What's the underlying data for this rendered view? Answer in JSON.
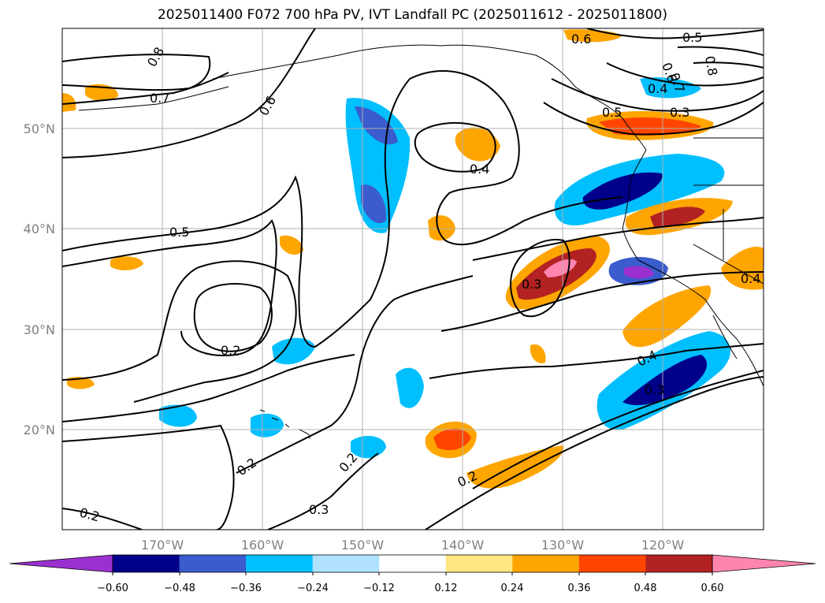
{
  "title": "2025011400 F072 700 hPa PV, IVT Landfall PC (2025011612 - 2025011800)",
  "map": {
    "lon_range": [
      180,
      110
    ],
    "lat_range": [
      10,
      60
    ],
    "lon_ticks": [
      "170°W",
      "160°W",
      "150°W",
      "140°W",
      "130°W",
      "120°W"
    ],
    "lat_ticks": [
      "20°N",
      "30°N",
      "40°N",
      "50°N"
    ],
    "gridlines": true
  },
  "contour_labels": [
    "0.8",
    "0.7",
    "0.6",
    "0.6",
    "0.5",
    "0.5",
    "0.5",
    "0.4",
    "0.4",
    "0.4",
    "0.4",
    "0.3",
    "0.3",
    "0.3",
    "0.3",
    "0.2",
    "0.2",
    "0.2",
    "0.2",
    "0.2",
    "0.6",
    "0.7",
    "0.8"
  ],
  "colorbar": {
    "ticks": [
      "−0.60",
      "−0.48",
      "−0.36",
      "−0.24",
      "−0.12",
      "0.12",
      "0.24",
      "0.36",
      "0.48",
      "0.60"
    ],
    "colors": [
      "#9b30d0",
      "#00008b",
      "#3a5ccc",
      "#00bfff",
      "#b0e2ff",
      "#ffffff",
      "#ffe680",
      "#ffa500",
      "#ff4500",
      "#b22222",
      "#ff85b0"
    ],
    "extend": "both"
  }
}
